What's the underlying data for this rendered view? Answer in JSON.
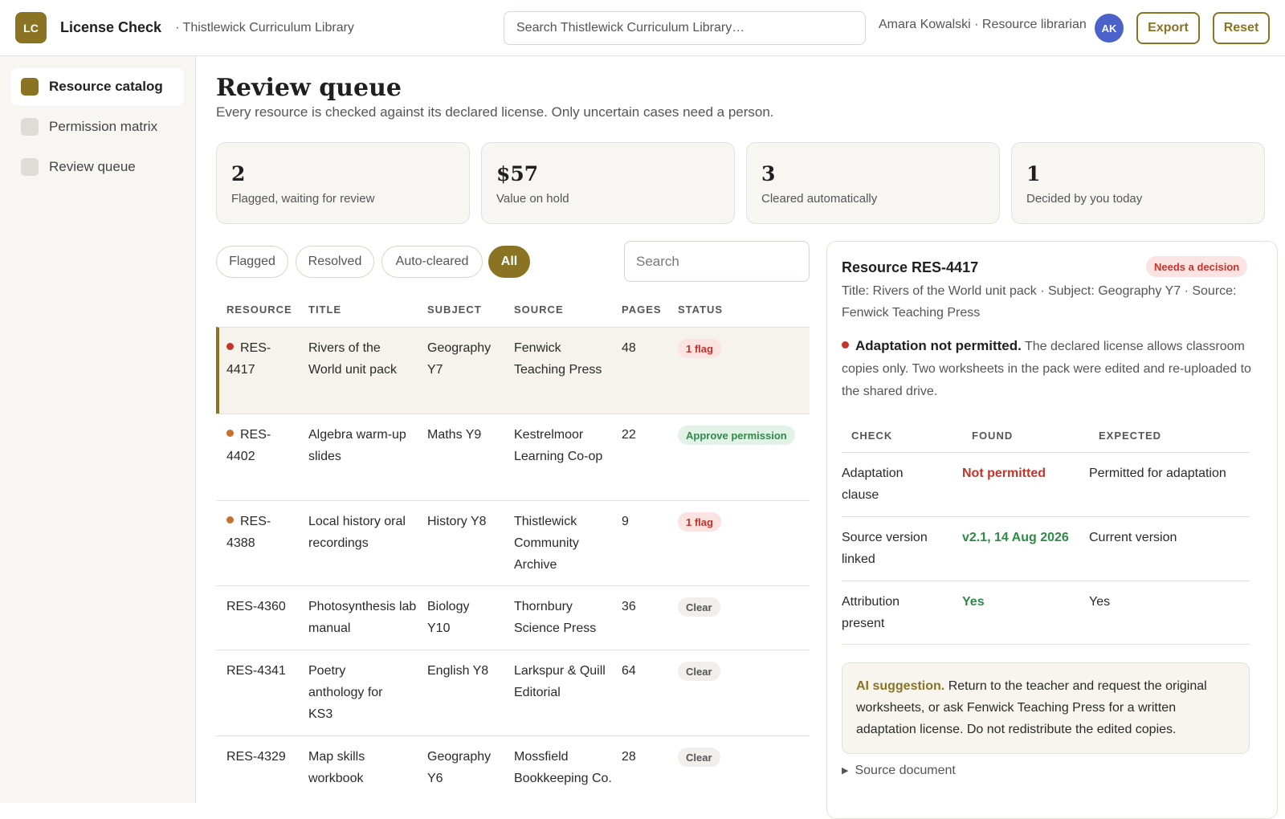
{
  "app": {
    "logo": "LC",
    "title": "License Check",
    "subtitle": "· Thistlewick Curriculum Library",
    "search_placeholder": "Search Thistlewick Curriculum Library…",
    "user": "Amara Kowalski · Resource librarian",
    "avatar": "AK",
    "export_label": "Export",
    "reset_label": "Reset",
    "accent": "#8a7424"
  },
  "sidebar": {
    "items": [
      {
        "label": "Resource catalog",
        "active": true
      },
      {
        "label": "Permission matrix",
        "active": false
      },
      {
        "label": "Review queue",
        "active": false
      }
    ]
  },
  "page": {
    "title": "Review queue",
    "description": "Every resource is checked against its declared license. Only uncertain cases need a person."
  },
  "stats": [
    {
      "value": "2",
      "label": "Flagged, waiting for review"
    },
    {
      "value": "$57",
      "label": "Value on hold"
    },
    {
      "value": "3",
      "label": "Cleared automatically"
    },
    {
      "value": "1",
      "label": "Decided by you today"
    }
  ],
  "filters": {
    "chips": [
      "Flagged",
      "Resolved",
      "Auto-cleared",
      "All"
    ],
    "active": "All",
    "search_placeholder": "Search"
  },
  "table": {
    "headers": [
      "RESOURCE",
      "TITLE",
      "SUBJECT",
      "SOURCE",
      "PAGES",
      "STATUS"
    ],
    "rows": [
      {
        "id": "RES-4417",
        "title": "Rivers of the World unit pack",
        "subject": "Geography Y7",
        "source": "Fenwick Teaching Press",
        "pages": "48",
        "status": "1 flag",
        "status_kind": "flag",
        "dot": "#c3342c"
      },
      {
        "id": "RES-4402",
        "title": "Algebra warm-up slides",
        "subject": "Maths Y9",
        "source": "Kestrelmoor Learning Co-op",
        "pages": "22",
        "status": "Approve permission",
        "status_kind": "approve",
        "dot": "#c8702a"
      },
      {
        "id": "RES-4388",
        "title": "Local history oral recordings",
        "subject": "History Y8",
        "source": "Thistlewick Community Archive",
        "pages": "9",
        "status": "1 flag",
        "status_kind": "flag",
        "dot": "#c8702a"
      },
      {
        "id": "RES-4360",
        "title": "Photosynthesis lab manual",
        "subject": "Biology Y10",
        "source": "Thornbury Science Press",
        "pages": "36",
        "status": "Clear",
        "status_kind": "clear",
        "dot": null
      },
      {
        "id": "RES-4341",
        "title": "Poetry anthology for KS3",
        "subject": "English Y8",
        "source": "Larkspur & Quill Editorial",
        "pages": "64",
        "status": "Clear",
        "status_kind": "clear",
        "dot": null
      },
      {
        "id": "RES-4329",
        "title": "Map skills workbook",
        "subject": "Geography Y6",
        "source": "Mossfield Bookkeeping Co.",
        "pages": "28",
        "status": "Clear",
        "status_kind": "clear",
        "dot": null
      }
    ]
  },
  "detail": {
    "title": "Resource RES-4417",
    "badge": "Needs a decision",
    "meta": "Title: Rivers of the World unit pack · Subject: Geography Y7 · Source: Fenwick Teaching Press",
    "issue_title": "Adaptation not permitted.",
    "issue_text": "The declared license allows classroom copies only. Two worksheets in the pack were edited and re-uploaded to the shared drive.",
    "check_headers": [
      "CHECK",
      "FOUND",
      "EXPECTED"
    ],
    "checks": [
      {
        "check": "Adaptation clause",
        "found": "Not permitted",
        "found_kind": "bad",
        "expected": "Permitted for adaptation"
      },
      {
        "check": "Source version linked",
        "found": "v2.1, 14 Aug 2026",
        "found_kind": "good",
        "expected": "Current version"
      },
      {
        "check": "Attribution present",
        "found": "Yes",
        "found_kind": "good",
        "expected": "Yes"
      }
    ],
    "ai_label": "AI suggestion.",
    "ai_text": "Return to the teacher and request the original worksheets, or ask Fenwick Teaching Press for a written adaptation license. Do not redistribute the edited copies.",
    "source_doc": "Source document"
  }
}
